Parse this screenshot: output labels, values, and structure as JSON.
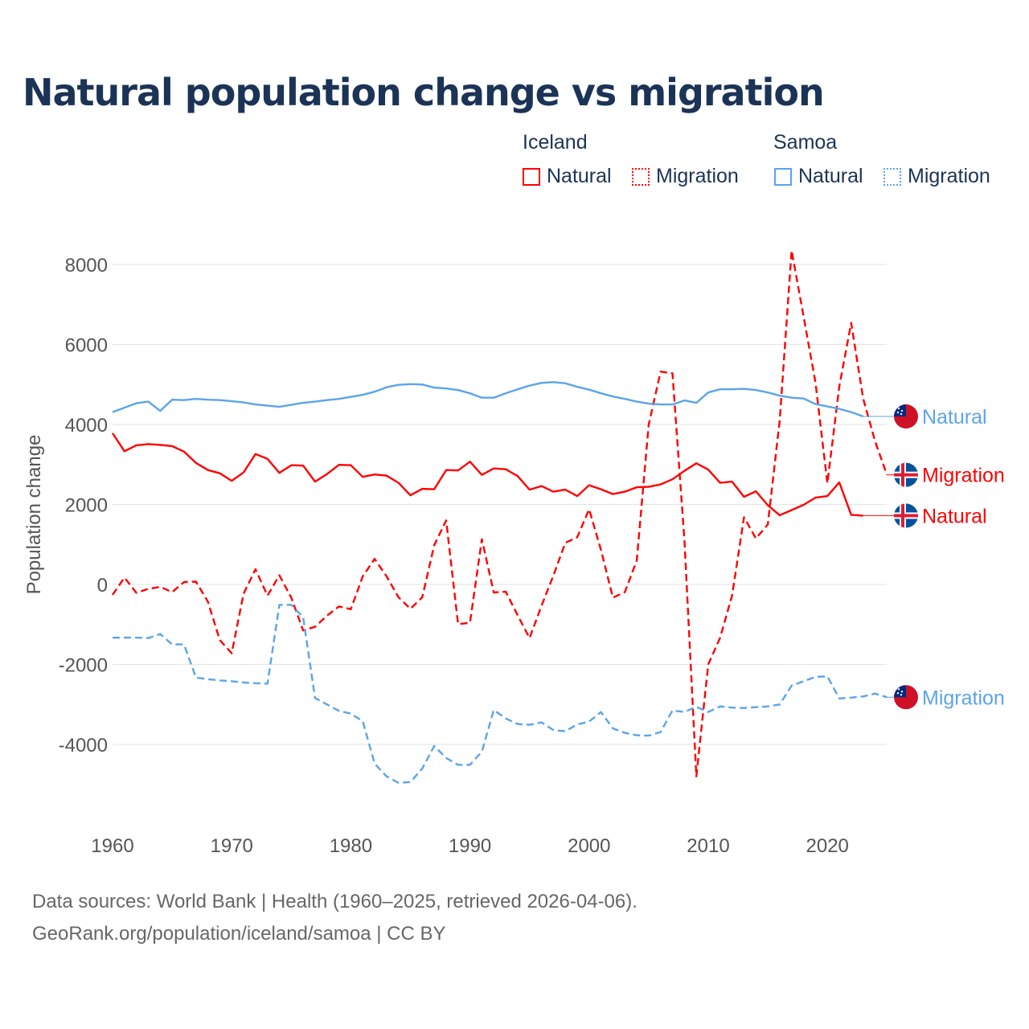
{
  "title": "Natural population change vs migration",
  "legend": {
    "groups": [
      {
        "name": "Iceland",
        "items": [
          "Natural",
          "Migration"
        ],
        "color": "#ff0000"
      },
      {
        "name": "Samoa",
        "items": [
          "Natural",
          "Migration"
        ],
        "color": "#5ba4ea"
      }
    ]
  },
  "footer": {
    "line1": "Data sources: World Bank | Health (1960–2025, retrieved 2026-04-06).",
    "line2": "GeoRank.org/population/iceland/samoa | CC BY"
  },
  "chart_data": {
    "type": "line",
    "title": "Natural population change vs migration",
    "xlabel": "",
    "ylabel": "Population change",
    "xlim": [
      1960,
      2025
    ],
    "ylim": [
      -5000,
      8500
    ],
    "x_ticks": [
      "1960",
      "1970",
      "1980",
      "1990",
      "2000",
      "2010",
      "2020"
    ],
    "y_ticks": [
      "8000",
      "6000",
      "4000",
      "2000",
      "0",
      "-2000",
      "-4000"
    ],
    "grid": true,
    "x_start": 1960,
    "series": [
      {
        "name": "Iceland Natural",
        "end_label": "Natural",
        "color": "#ff0000",
        "dash": false,
        "flag": "iceland",
        "values": [
          3780,
          3330,
          3480,
          3510,
          3490,
          3460,
          3320,
          3040,
          2860,
          2780,
          2590,
          2800,
          3260,
          3140,
          2790,
          2980,
          2970,
          2570,
          2760,
          2990,
          2980,
          2690,
          2750,
          2720,
          2540,
          2230,
          2390,
          2380,
          2860,
          2850,
          3070,
          2740,
          2900,
          2880,
          2710,
          2370,
          2460,
          2320,
          2370,
          2210,
          2480,
          2380,
          2260,
          2320,
          2430,
          2440,
          2500,
          2630,
          2840,
          3030,
          2870,
          2540,
          2570,
          2190,
          2330,
          1980,
          1730,
          1860,
          1990,
          2170,
          2210,
          2550,
          1740,
          1720
        ]
      },
      {
        "name": "Iceland Migration",
        "end_label": "Migration",
        "color": "#ff0000",
        "dash": true,
        "flag": "iceland",
        "values": [
          -260,
          170,
          -210,
          -110,
          -60,
          -190,
          60,
          70,
          -430,
          -1390,
          -1720,
          -230,
          380,
          -280,
          230,
          -330,
          -1150,
          -1060,
          -780,
          -550,
          -620,
          200,
          640,
          200,
          -320,
          -610,
          -320,
          980,
          1600,
          -990,
          -960,
          1130,
          -200,
          -180,
          -770,
          -1340,
          -540,
          220,
          1040,
          1180,
          1880,
          860,
          -330,
          -190,
          600,
          3990,
          5320,
          5280,
          1100,
          -4800,
          -2000,
          -1330,
          -280,
          1680,
          1150,
          1500,
          4100,
          8350,
          6700,
          5050,
          2530,
          4950,
          6540,
          4650,
          3580,
          2740
        ]
      },
      {
        "name": "Samoa Natural",
        "end_label": "Natural",
        "color": "#5ba4ea",
        "dash": false,
        "flag": "samoa",
        "values": [
          4310,
          4420,
          4530,
          4570,
          4340,
          4620,
          4610,
          4640,
          4620,
          4610,
          4580,
          4550,
          4500,
          4470,
          4440,
          4490,
          4540,
          4570,
          4610,
          4640,
          4690,
          4740,
          4820,
          4930,
          4990,
          5010,
          5000,
          4920,
          4900,
          4860,
          4780,
          4670,
          4670,
          4780,
          4880,
          4970,
          5040,
          5060,
          5030,
          4940,
          4870,
          4780,
          4700,
          4640,
          4570,
          4520,
          4500,
          4500,
          4600,
          4540,
          4800,
          4880,
          4880,
          4890,
          4860,
          4800,
          4720,
          4670,
          4650,
          4510,
          4450,
          4390,
          4310,
          4200
        ]
      },
      {
        "name": "Samoa Migration",
        "end_label": "Migration",
        "color": "#5ba4ea",
        "dash": true,
        "flag": "samoa",
        "values": [
          -1330,
          -1330,
          -1330,
          -1340,
          -1240,
          -1500,
          -1500,
          -2330,
          -2370,
          -2400,
          -2420,
          -2450,
          -2470,
          -2480,
          -510,
          -510,
          -820,
          -2840,
          -3000,
          -3160,
          -3230,
          -3420,
          -4480,
          -4800,
          -4960,
          -4940,
          -4600,
          -4040,
          -4340,
          -4510,
          -4510,
          -4180,
          -3140,
          -3350,
          -3490,
          -3510,
          -3450,
          -3640,
          -3670,
          -3500,
          -3430,
          -3190,
          -3600,
          -3710,
          -3770,
          -3780,
          -3690,
          -3150,
          -3190,
          -3060,
          -3190,
          -3050,
          -3080,
          -3090,
          -3070,
          -3050,
          -3000,
          -2530,
          -2420,
          -2310,
          -2300,
          -2850,
          -2830,
          -2800,
          -2730,
          -2820
        ]
      }
    ]
  }
}
